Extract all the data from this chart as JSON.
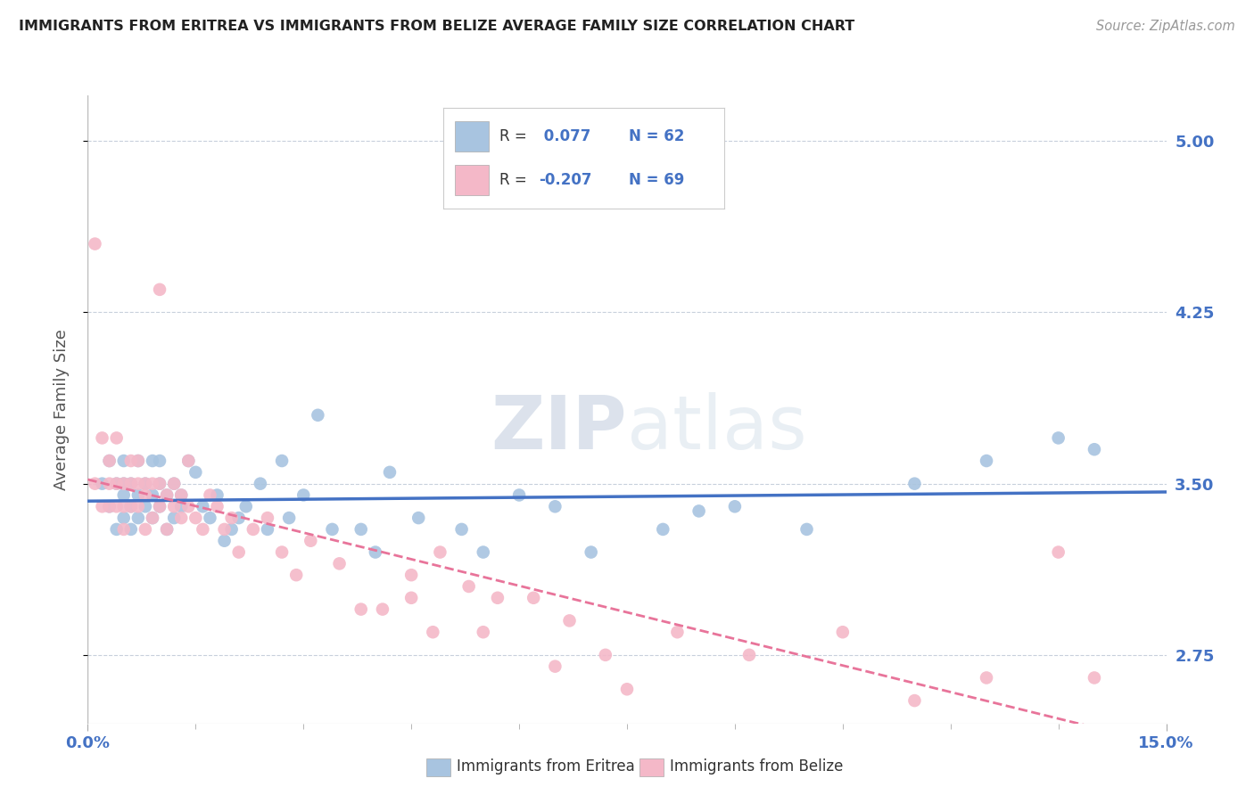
{
  "title": "IMMIGRANTS FROM ERITREA VS IMMIGRANTS FROM BELIZE AVERAGE FAMILY SIZE CORRELATION CHART",
  "source_text": "Source: ZipAtlas.com",
  "ylabel": "Average Family Size",
  "watermark": "ZIPatlas",
  "xlim": [
    0.0,
    0.15
  ],
  "ylim": [
    2.45,
    5.2
  ],
  "yticks": [
    2.75,
    3.5,
    4.25,
    5.0
  ],
  "xticks_major": [
    0.0,
    0.15
  ],
  "xtick_labels": [
    "0.0%",
    "15.0%"
  ],
  "xticks_minor": [
    0.015,
    0.03,
    0.045,
    0.06,
    0.075,
    0.09,
    0.105,
    0.12,
    0.135
  ],
  "legend_r_color": "#4472c4",
  "color_eritrea": "#a8c4e0",
  "color_belize": "#f4b8c8",
  "line_color_eritrea": "#4472c4",
  "line_color_belize": "#e8749a",
  "background_color": "#ffffff",
  "grid_color": "#c8d0dc",
  "eritrea_x": [
    0.002,
    0.003,
    0.003,
    0.004,
    0.004,
    0.005,
    0.005,
    0.005,
    0.005,
    0.006,
    0.006,
    0.006,
    0.007,
    0.007,
    0.007,
    0.008,
    0.008,
    0.009,
    0.009,
    0.009,
    0.01,
    0.01,
    0.01,
    0.011,
    0.011,
    0.012,
    0.012,
    0.013,
    0.013,
    0.014,
    0.015,
    0.016,
    0.017,
    0.018,
    0.019,
    0.02,
    0.021,
    0.022,
    0.024,
    0.025,
    0.027,
    0.028,
    0.03,
    0.032,
    0.034,
    0.038,
    0.04,
    0.042,
    0.046,
    0.052,
    0.055,
    0.06,
    0.065,
    0.07,
    0.08,
    0.085,
    0.09,
    0.1,
    0.115,
    0.125,
    0.135,
    0.14
  ],
  "eritrea_y": [
    3.5,
    3.6,
    3.4,
    3.5,
    3.3,
    3.5,
    3.45,
    3.35,
    3.6,
    3.4,
    3.5,
    3.3,
    3.45,
    3.35,
    3.6,
    3.4,
    3.5,
    3.35,
    3.45,
    3.6,
    3.5,
    3.6,
    3.4,
    3.45,
    3.3,
    3.5,
    3.35,
    3.4,
    3.45,
    3.6,
    3.55,
    3.4,
    3.35,
    3.45,
    3.25,
    3.3,
    3.35,
    3.4,
    3.5,
    3.3,
    3.6,
    3.35,
    3.45,
    3.8,
    3.3,
    3.3,
    3.2,
    3.55,
    3.35,
    3.3,
    3.2,
    3.45,
    3.4,
    3.2,
    3.3,
    3.38,
    3.4,
    3.3,
    3.5,
    3.6,
    3.7,
    3.65
  ],
  "belize_x": [
    0.001,
    0.001,
    0.002,
    0.002,
    0.003,
    0.003,
    0.003,
    0.004,
    0.004,
    0.004,
    0.005,
    0.005,
    0.005,
    0.006,
    0.006,
    0.006,
    0.007,
    0.007,
    0.007,
    0.008,
    0.008,
    0.008,
    0.009,
    0.009,
    0.01,
    0.01,
    0.01,
    0.011,
    0.011,
    0.012,
    0.012,
    0.013,
    0.013,
    0.014,
    0.014,
    0.015,
    0.016,
    0.017,
    0.018,
    0.019,
    0.02,
    0.021,
    0.023,
    0.025,
    0.027,
    0.029,
    0.031,
    0.035,
    0.038,
    0.041,
    0.045,
    0.049,
    0.053,
    0.057,
    0.062,
    0.067,
    0.055,
    0.048,
    0.072,
    0.082,
    0.092,
    0.105,
    0.115,
    0.125,
    0.135,
    0.14,
    0.045,
    0.065,
    0.075
  ],
  "belize_y": [
    3.5,
    4.55,
    3.7,
    3.4,
    3.5,
    3.6,
    3.4,
    3.7,
    3.5,
    3.4,
    3.5,
    3.4,
    3.3,
    3.6,
    3.5,
    3.4,
    3.5,
    3.6,
    3.4,
    3.3,
    3.5,
    3.45,
    3.35,
    3.5,
    3.4,
    3.5,
    4.35,
    3.45,
    3.3,
    3.4,
    3.5,
    3.35,
    3.45,
    3.4,
    3.6,
    3.35,
    3.3,
    3.45,
    3.4,
    3.3,
    3.35,
    3.2,
    3.3,
    3.35,
    3.2,
    3.1,
    3.25,
    3.15,
    2.95,
    2.95,
    3.1,
    3.2,
    3.05,
    3.0,
    3.0,
    2.9,
    2.85,
    2.85,
    2.75,
    2.85,
    2.75,
    2.85,
    2.55,
    2.65,
    3.2,
    2.65,
    3.0,
    2.7,
    2.6
  ]
}
